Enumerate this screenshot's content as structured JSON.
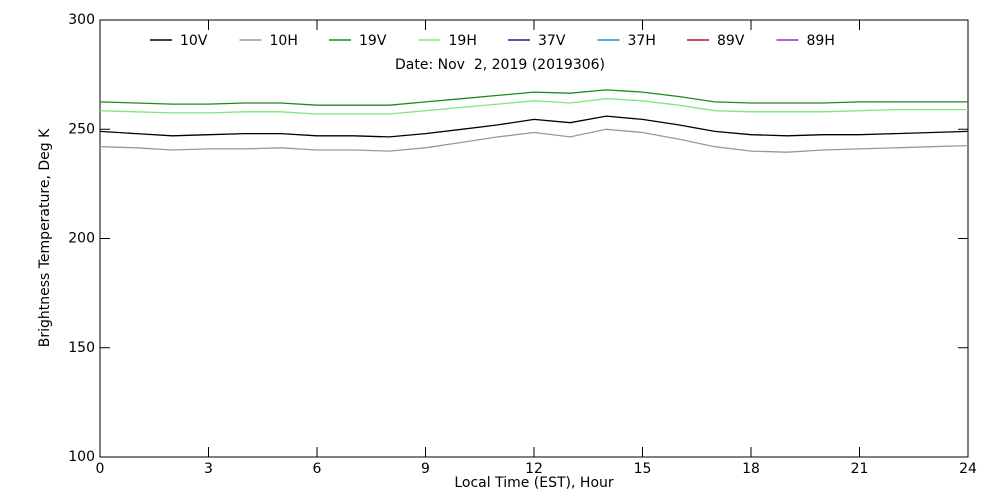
{
  "chart_data": {
    "type": "line",
    "subtitle": "Date: Nov  2, 2019 (2019306)",
    "x_label": "Local Time (EST), Hour",
    "y_label": "Brightness Temperature, Deg K",
    "x": [
      0,
      1,
      2,
      3,
      4,
      5,
      6,
      7,
      8,
      9,
      10,
      11,
      12,
      13,
      14,
      15,
      16,
      17,
      18,
      19,
      20,
      21,
      22,
      23,
      24
    ],
    "series": [
      {
        "name": "10V",
        "color": "#000000",
        "values": [
          249,
          248,
          247,
          247.5,
          248,
          248,
          247,
          247,
          246.5,
          248,
          250,
          252,
          254.5,
          253,
          256,
          254.5,
          252,
          249,
          247.5,
          247,
          247.5,
          247.5,
          248,
          248.5,
          249
        ]
      },
      {
        "name": "10H",
        "color": "#999999",
        "values": [
          242,
          241.5,
          240.5,
          241,
          241,
          241.5,
          240.5,
          240.5,
          240,
          241.5,
          244,
          246.5,
          248.5,
          246.5,
          250,
          248.5,
          245.5,
          242,
          240,
          239.5,
          240.5,
          241,
          241.5,
          242,
          242.5
        ]
      },
      {
        "name": "19V",
        "color": "#1a8c1a",
        "values": [
          262.5,
          262,
          261.5,
          261.5,
          262,
          262,
          261,
          261,
          261,
          262.5,
          264,
          265.5,
          267,
          266.5,
          268,
          267,
          265,
          262.5,
          262,
          262,
          262,
          262.5,
          262.5,
          262.5,
          262.5
        ]
      },
      {
        "name": "19H",
        "color": "#7ee87e",
        "values": [
          258.5,
          258,
          257.5,
          257.5,
          258,
          258,
          257,
          257,
          257,
          258.5,
          260,
          261.5,
          263,
          262,
          264,
          263,
          261,
          258.5,
          258,
          258,
          258,
          258.5,
          259,
          259,
          259
        ]
      },
      {
        "name": "37V",
        "color": "#20208c",
        "values": [
          null,
          null,
          null,
          null,
          null,
          null,
          null,
          null,
          null,
          null,
          null,
          null,
          null,
          null,
          null,
          null,
          null,
          null,
          null,
          null,
          null,
          null,
          null,
          null,
          null
        ]
      },
      {
        "name": "37H",
        "color": "#1e90c8",
        "values": [
          null,
          null,
          null,
          null,
          null,
          null,
          null,
          null,
          null,
          null,
          null,
          null,
          null,
          null,
          null,
          null,
          null,
          null,
          null,
          null,
          null,
          null,
          null,
          null,
          null
        ]
      },
      {
        "name": "89V",
        "color": "#c01030",
        "values": [
          null,
          null,
          null,
          null,
          null,
          null,
          null,
          null,
          null,
          null,
          null,
          null,
          null,
          null,
          null,
          null,
          null,
          null,
          null,
          null,
          null,
          null,
          null,
          null,
          null
        ]
      },
      {
        "name": "89H",
        "color": "#a030c0",
        "values": [
          null,
          null,
          null,
          null,
          null,
          null,
          null,
          null,
          null,
          null,
          null,
          null,
          null,
          null,
          null,
          null,
          null,
          null,
          null,
          null,
          null,
          null,
          null,
          null,
          null
        ]
      }
    ],
    "xlim": [
      0,
      24
    ],
    "xticks": [
      0,
      3,
      6,
      9,
      12,
      15,
      18,
      21,
      24
    ],
    "ylim": [
      100,
      300
    ],
    "yticks": [
      100,
      150,
      200,
      250,
      300
    ],
    "grid": false
  }
}
